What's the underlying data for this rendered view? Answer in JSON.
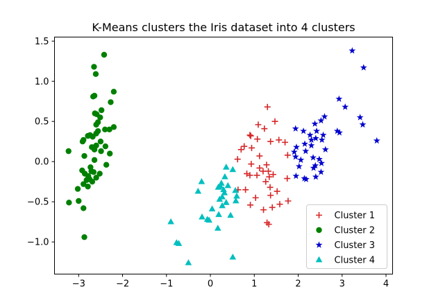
{
  "chart_data": {
    "type": "scatter",
    "title": "K-Means clusters the Iris dataset into 4 clusters",
    "xlabel": "",
    "ylabel": "",
    "xlim": [
      -3.55,
      4.15
    ],
    "ylim": [
      -1.4,
      1.55
    ],
    "xticks": [
      -3,
      -2,
      -1,
      0,
      1,
      2,
      3,
      4
    ],
    "yticks": [
      -1.0,
      -0.5,
      0.0,
      0.5,
      1.0,
      1.5
    ],
    "xtick_labels": [
      "−3",
      "−2",
      "−1",
      "0",
      "1",
      "2",
      "3",
      "4"
    ],
    "ytick_labels": [
      "−1.0",
      "−0.5",
      "0.0",
      "0.5",
      "1.0",
      "1.5"
    ],
    "grid": false,
    "legend_position": "lower-right",
    "series": [
      {
        "name": "Cluster 1",
        "marker": "plus",
        "color": "#d62728",
        "points": [
          [
            1.3,
            0.68
          ],
          [
            0.9,
            0.33
          ],
          [
            0.92,
            0.32
          ],
          [
            1.23,
            0.41
          ],
          [
            1.47,
            0.5
          ],
          [
            1.09,
            0.46
          ],
          [
            1.37,
            0.25
          ],
          [
            1.56,
            0.27
          ],
          [
            1.7,
            0.24
          ],
          [
            0.77,
            0.19
          ],
          [
            0.7,
            0.15
          ],
          [
            0.94,
            0.17
          ],
          [
            1.07,
            0.28
          ],
          [
            1.12,
            0.07
          ],
          [
            1.76,
            0.08
          ],
          [
            0.62,
            0.03
          ],
          [
            0.93,
            -0.03
          ],
          [
            1.28,
            -0.04
          ],
          [
            1.12,
            -0.08
          ],
          [
            1.2,
            -0.12
          ],
          [
            0.83,
            -0.15
          ],
          [
            0.9,
            -0.17
          ],
          [
            1.32,
            -0.12
          ],
          [
            1.06,
            -0.17
          ],
          [
            1.43,
            -0.16
          ],
          [
            1.34,
            -0.19
          ],
          [
            1.75,
            -0.21
          ],
          [
            1.26,
            -0.25
          ],
          [
            0.8,
            -0.35
          ],
          [
            0.63,
            -0.35
          ],
          [
            1.36,
            -0.32
          ],
          [
            1.52,
            -0.37
          ],
          [
            1.37,
            -0.42
          ],
          [
            1.03,
            -0.45
          ],
          [
            0.91,
            -0.54
          ],
          [
            1.58,
            -0.53
          ],
          [
            1.41,
            -0.57
          ],
          [
            1.21,
            -0.6
          ],
          [
            1.77,
            -0.49
          ],
          [
            1.29,
            -0.76
          ],
          [
            1.33,
            -0.78
          ]
        ]
      },
      {
        "name": "Cluster 2",
        "marker": "circle",
        "color": "#008000",
        "points": [
          [
            -2.42,
            1.33
          ],
          [
            -2.65,
            1.18
          ],
          [
            -2.61,
            1.09
          ],
          [
            -2.2,
            0.87
          ],
          [
            -2.64,
            0.82
          ],
          [
            -2.67,
            0.81
          ],
          [
            -2.27,
            0.74
          ],
          [
            -2.48,
            0.64
          ],
          [
            -2.59,
            0.59
          ],
          [
            -2.51,
            0.55
          ],
          [
            -2.63,
            0.6
          ],
          [
            -2.56,
            0.49
          ],
          [
            -2.6,
            0.46
          ],
          [
            -2.2,
            0.43
          ],
          [
            -2.3,
            0.4
          ],
          [
            -2.4,
            0.4
          ],
          [
            -2.56,
            0.38
          ],
          [
            -2.6,
            0.35
          ],
          [
            -2.74,
            0.33
          ],
          [
            -2.79,
            0.32
          ],
          [
            -2.68,
            0.31
          ],
          [
            -2.89,
            0.27
          ],
          [
            -2.91,
            0.25
          ],
          [
            -2.5,
            0.25
          ],
          [
            -2.6,
            0.2
          ],
          [
            -2.39,
            0.19
          ],
          [
            -2.7,
            0.18
          ],
          [
            -2.64,
            0.15
          ],
          [
            -2.49,
            0.13
          ],
          [
            -2.29,
            0.1
          ],
          [
            -2.87,
            0.07
          ],
          [
            -3.23,
            0.13
          ],
          [
            -2.64,
            0.02
          ],
          [
            -2.37,
            -0.04
          ],
          [
            -2.73,
            -0.07
          ],
          [
            -2.92,
            -0.11
          ],
          [
            -2.71,
            -0.12
          ],
          [
            -2.66,
            -0.13
          ],
          [
            -2.86,
            -0.15
          ],
          [
            -2.52,
            -0.15
          ],
          [
            -2.78,
            -0.18
          ],
          [
            -2.6,
            -0.2
          ],
          [
            -2.75,
            -0.22
          ],
          [
            -2.82,
            -0.23
          ],
          [
            -2.69,
            -0.25
          ],
          [
            -2.89,
            -0.28
          ],
          [
            -2.79,
            -0.31
          ],
          [
            -3.02,
            -0.34
          ],
          [
            -3.0,
            -0.49
          ],
          [
            -3.22,
            -0.51
          ],
          [
            -2.89,
            -0.58
          ],
          [
            -2.87,
            -0.94
          ]
        ]
      },
      {
        "name": "Cluster 3",
        "marker": "star",
        "color": "#0000cd",
        "points": [
          [
            3.23,
            1.38
          ],
          [
            3.49,
            1.17
          ],
          [
            2.93,
            0.78
          ],
          [
            3.07,
            0.68
          ],
          [
            2.6,
            0.56
          ],
          [
            3.41,
            0.55
          ],
          [
            2.52,
            0.51
          ],
          [
            2.38,
            0.47
          ],
          [
            3.47,
            0.46
          ],
          [
            1.94,
            0.41
          ],
          [
            2.12,
            0.38
          ],
          [
            2.42,
            0.38
          ],
          [
            2.89,
            0.38
          ],
          [
            2.94,
            0.36
          ],
          [
            2.27,
            0.33
          ],
          [
            2.57,
            0.33
          ],
          [
            2.4,
            0.29
          ],
          [
            2.3,
            0.27
          ],
          [
            3.79,
            0.26
          ],
          [
            2.54,
            0.27
          ],
          [
            2.15,
            0.22
          ],
          [
            1.96,
            0.18
          ],
          [
            2.3,
            0.2
          ],
          [
            2.17,
            0.13
          ],
          [
            2.62,
            0.15
          ],
          [
            1.91,
            0.12
          ],
          [
            1.94,
            0.06
          ],
          [
            2.34,
            0.05
          ],
          [
            2.48,
            0.03
          ],
          [
            2.06,
            0.02
          ],
          [
            2.53,
            -0.02
          ],
          [
            2.39,
            -0.05
          ],
          [
            2.02,
            -0.06
          ],
          [
            2.35,
            -0.08
          ],
          [
            2.52,
            -0.13
          ],
          [
            2.4,
            -0.19
          ],
          [
            1.95,
            -0.18
          ],
          [
            2.14,
            -0.21
          ],
          [
            2.18,
            -0.22
          ]
        ]
      },
      {
        "name": "Cluster 4",
        "marker": "triangle",
        "color": "#00bfbf",
        "points": [
          [
            0.36,
            -0.07
          ],
          [
            0.51,
            -0.1
          ],
          [
            0.33,
            -0.19
          ],
          [
            -0.2,
            -0.25
          ],
          [
            0.25,
            -0.27
          ],
          [
            0.23,
            -0.31
          ],
          [
            0.4,
            -0.3
          ],
          [
            0.3,
            -0.35
          ],
          [
            0.18,
            -0.32
          ],
          [
            0.32,
            -0.39
          ],
          [
            0.57,
            -0.36
          ],
          [
            -0.28,
            -0.37
          ],
          [
            0.6,
            -0.43
          ],
          [
            0.27,
            -0.44
          ],
          [
            0.21,
            -0.47
          ],
          [
            0.36,
            -0.51
          ],
          [
            0.58,
            -0.49
          ],
          [
            0.27,
            -0.55
          ],
          [
            0.04,
            -0.59
          ],
          [
            0.19,
            -0.66
          ],
          [
            0.46,
            -0.67
          ],
          [
            -0.19,
            -0.69
          ],
          [
            -0.07,
            -0.72
          ],
          [
            -0.03,
            -0.73
          ],
          [
            0.17,
            -0.83
          ],
          [
            -0.9,
            -0.75
          ],
          [
            -0.77,
            -1.01
          ],
          [
            -0.72,
            -1.02
          ],
          [
            -0.5,
            -1.26
          ],
          [
            0.51,
            -1.19
          ]
        ]
      }
    ]
  }
}
